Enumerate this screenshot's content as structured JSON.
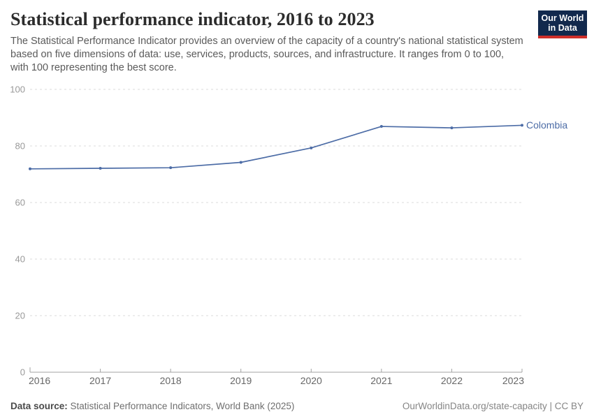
{
  "header": {
    "title": "Statistical performance indicator, 2016 to 2023",
    "subtitle": "The Statistical Performance Indicator provides an overview of the capacity of a country's national statistical system based on five dimensions of data: use, services, products, sources, and infrastructure. It ranges from 0 to 100, with 100 representing the best score.",
    "logo": {
      "line1": "Our World",
      "line2": "in Data"
    }
  },
  "chart_data": {
    "type": "line",
    "title": "Statistical performance indicator, 2016 to 2023",
    "x": [
      2016,
      2017,
      2018,
      2019,
      2020,
      2021,
      2022,
      2023
    ],
    "series": [
      {
        "name": "Colombia",
        "values": [
          71.9,
          72.1,
          72.3,
          74.2,
          79.3,
          86.9,
          86.4,
          87.3
        ],
        "color": "#4C6CA6"
      }
    ],
    "ylim": [
      0,
      100
    ],
    "yticks": [
      0,
      20,
      40,
      60,
      80,
      100
    ],
    "xticks": [
      2016,
      2017,
      2018,
      2019,
      2020,
      2021,
      2022,
      2023
    ],
    "grid": true,
    "legend_position": "end-of-line-label",
    "xlabel": "",
    "ylabel": ""
  },
  "colors": {
    "line": "#4C6CA6",
    "grid": "#DBDBDB",
    "axis": "#A3A3A3",
    "y_tick_label": "#999999",
    "x_tick_label": "#666666",
    "logo_bg": "#12294D",
    "logo_stripe": "#CF2F2A",
    "title": "#2C2C2C"
  },
  "footer": {
    "source_label": "Data source:",
    "source_text": " Statistical Performance Indicators, World Bank (2025)",
    "right_text": "OurWorldinData.org/state-capacity | CC BY"
  }
}
